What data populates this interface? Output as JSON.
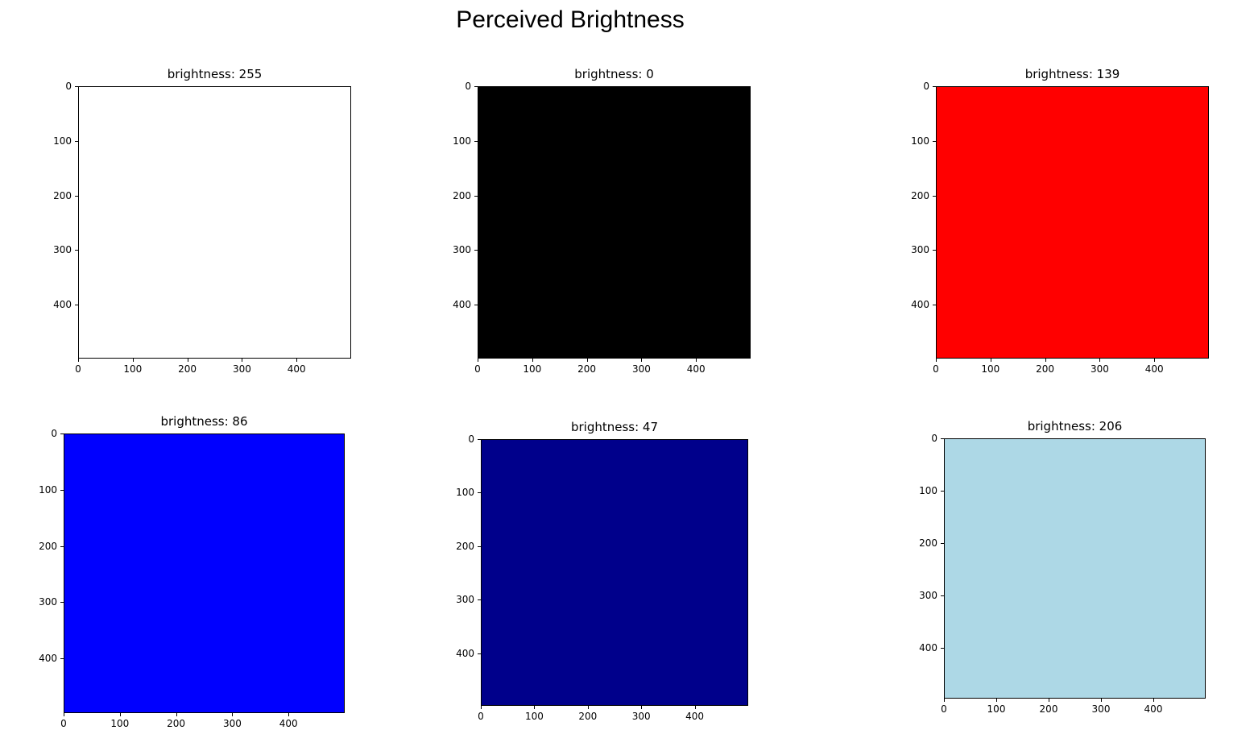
{
  "figure": {
    "title": "Perceived Brightness"
  },
  "chart_data": {
    "type": "heatmap",
    "title": "Perceived Brightness",
    "layout": {
      "rows": 2,
      "cols": 3
    },
    "panels": [
      {
        "title": "brightness: 255",
        "brightness": 255,
        "color": "#ffffff",
        "xlim": [
          0,
          499
        ],
        "ylim": [
          499,
          0
        ],
        "xticks": [
          0,
          100,
          200,
          300,
          400
        ],
        "yticks": [
          0,
          100,
          200,
          300,
          400
        ]
      },
      {
        "title": "brightness: 0",
        "brightness": 0,
        "color": "#000000",
        "xlim": [
          0,
          499
        ],
        "ylim": [
          499,
          0
        ],
        "xticks": [
          0,
          100,
          200,
          300,
          400
        ],
        "yticks": [
          0,
          100,
          200,
          300,
          400
        ]
      },
      {
        "title": "brightness: 139",
        "brightness": 139,
        "color": "#ff0000",
        "xlim": [
          0,
          499
        ],
        "ylim": [
          499,
          0
        ],
        "xticks": [
          0,
          100,
          200,
          300,
          400
        ],
        "yticks": [
          0,
          100,
          200,
          300,
          400
        ]
      },
      {
        "title": "brightness: 86",
        "brightness": 86,
        "color": "#0000ff",
        "xlim": [
          0,
          499
        ],
        "ylim": [
          499,
          0
        ],
        "xticks": [
          0,
          100,
          200,
          300,
          400
        ],
        "yticks": [
          0,
          100,
          200,
          300,
          400
        ]
      },
      {
        "title": "brightness: 47",
        "brightness": 47,
        "color": "#00008b",
        "xlim": [
          0,
          499
        ],
        "ylim": [
          499,
          0
        ],
        "xticks": [
          0,
          100,
          200,
          300,
          400
        ],
        "yticks": [
          0,
          100,
          200,
          300,
          400
        ]
      },
      {
        "title": "brightness: 206",
        "brightness": 206,
        "color": "#add8e6",
        "xlim": [
          0,
          499
        ],
        "ylim": [
          499,
          0
        ],
        "xticks": [
          0,
          100,
          200,
          300,
          400
        ],
        "yticks": [
          0,
          100,
          200,
          300,
          400
        ]
      }
    ]
  },
  "ticks": [
    "0",
    "100",
    "200",
    "300",
    "400"
  ]
}
